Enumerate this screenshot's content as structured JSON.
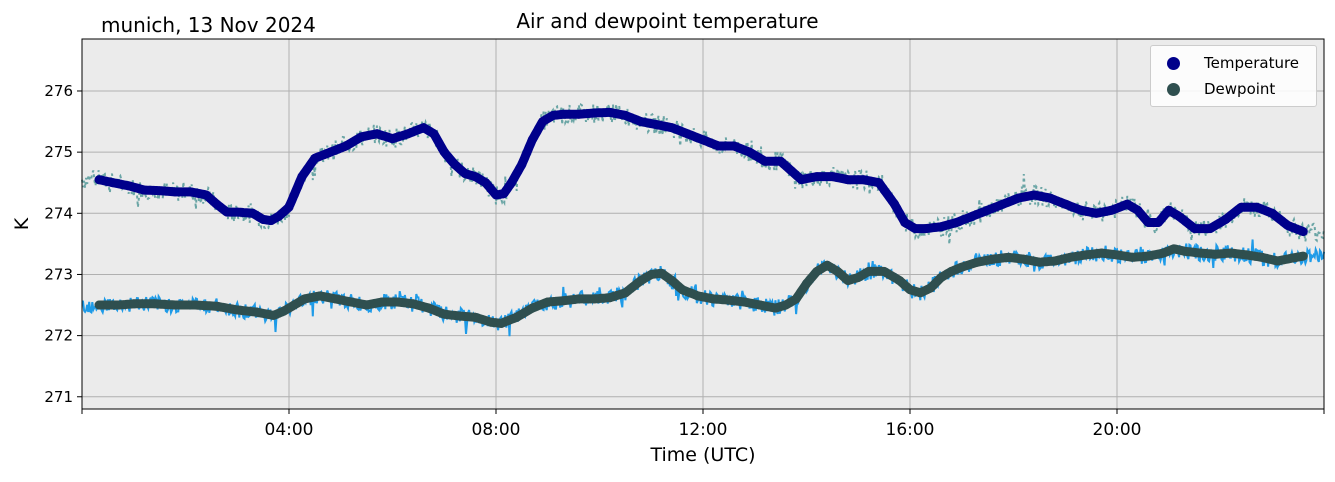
{
  "header": {
    "station_date": "munich, 13 Nov 2024",
    "title": "Air and dewpoint temperature"
  },
  "chart_data": {
    "type": "line",
    "title": "Air and dewpoint temperature",
    "xlabel": "Time (UTC)",
    "ylabel": "K",
    "xlim_hours": [
      0,
      24
    ],
    "ylim": [
      270.8,
      276.85
    ],
    "x_ticks": [
      0,
      4,
      8,
      12,
      16,
      20,
      24
    ],
    "x_tick_labels": [
      "",
      "04:00",
      "08:00",
      "12:00",
      "16:00",
      "20:00",
      ""
    ],
    "y_ticks": [
      271,
      272,
      273,
      274,
      275,
      276
    ],
    "grid": true,
    "legend_position": "top-right",
    "colors": {
      "temperature_smoothed": "#00008b",
      "dewpoint_smoothed": "#2f4f4f",
      "temperature_raw": "#6aa5a5",
      "dewpoint_raw": "#1e9be8",
      "plot_background": "#ebebeb",
      "grid": "#b0b0b0"
    },
    "series": [
      {
        "name": "Temperature",
        "role": "smoothed",
        "color": "#00008b",
        "x": [
          0.33,
          0.6,
          0.9,
          1.2,
          1.5,
          1.8,
          2.1,
          2.4,
          2.6,
          2.8,
          3.0,
          3.3,
          3.5,
          3.65,
          3.8,
          4.0,
          4.1,
          4.25,
          4.5,
          4.8,
          5.1,
          5.4,
          5.7,
          6.0,
          6.3,
          6.6,
          6.8,
          7.0,
          7.2,
          7.4,
          7.6,
          7.8,
          8.0,
          8.15,
          8.3,
          8.5,
          8.7,
          8.9,
          9.1,
          9.3,
          9.6,
          9.9,
          10.2,
          10.5,
          10.8,
          11.1,
          11.4,
          11.7,
          12.0,
          12.3,
          12.6,
          12.9,
          13.2,
          13.5,
          13.7,
          13.9,
          14.2,
          14.5,
          14.8,
          15.1,
          15.4,
          15.7,
          15.9,
          16.1,
          16.3,
          16.6,
          16.9,
          17.2,
          17.5,
          17.8,
          18.1,
          18.4,
          18.7,
          19.0,
          19.3,
          19.6,
          19.9,
          20.2,
          20.4,
          20.6,
          20.8,
          21.0,
          21.2,
          21.5,
          21.8,
          22.1,
          22.4,
          22.7,
          23.0,
          23.3,
          23.6
        ],
        "values": [
          274.55,
          274.5,
          274.45,
          274.38,
          274.37,
          274.35,
          274.35,
          274.3,
          274.15,
          274.02,
          274.02,
          274.0,
          273.9,
          273.88,
          273.95,
          274.1,
          274.3,
          274.6,
          274.9,
          275.0,
          275.1,
          275.25,
          275.3,
          275.22,
          275.3,
          275.4,
          275.3,
          275.0,
          274.8,
          274.65,
          274.6,
          274.5,
          274.3,
          274.32,
          274.5,
          274.8,
          275.2,
          275.5,
          275.6,
          275.62,
          275.62,
          275.64,
          275.65,
          275.6,
          275.5,
          275.45,
          275.4,
          275.3,
          275.2,
          275.1,
          275.1,
          275.0,
          274.85,
          274.85,
          274.7,
          274.55,
          274.6,
          274.6,
          274.55,
          274.55,
          274.5,
          274.15,
          273.85,
          273.75,
          273.75,
          273.78,
          273.85,
          273.95,
          274.05,
          274.15,
          274.25,
          274.3,
          274.25,
          274.15,
          274.05,
          274.0,
          274.05,
          274.15,
          274.05,
          273.85,
          273.85,
          274.05,
          273.95,
          273.75,
          273.75,
          273.9,
          274.1,
          274.1,
          274.0,
          273.8,
          273.7
        ]
      },
      {
        "name": "Dewpoint",
        "role": "smoothed",
        "color": "#2f4f4f",
        "x": [
          0.33,
          0.7,
          1.0,
          1.4,
          1.8,
          2.2,
          2.6,
          3.0,
          3.4,
          3.7,
          3.9,
          4.1,
          4.3,
          4.6,
          4.9,
          5.2,
          5.5,
          5.8,
          6.1,
          6.4,
          6.7,
          7.0,
          7.3,
          7.6,
          7.9,
          8.1,
          8.4,
          8.7,
          9.0,
          9.3,
          9.6,
          9.9,
          10.2,
          10.5,
          10.8,
          11.0,
          11.2,
          11.4,
          11.6,
          11.9,
          12.2,
          12.5,
          12.8,
          13.1,
          13.4,
          13.6,
          13.8,
          14.0,
          14.2,
          14.4,
          14.6,
          14.8,
          15.0,
          15.2,
          15.5,
          15.8,
          16.0,
          16.2,
          16.4,
          16.6,
          16.8,
          17.0,
          17.3,
          17.6,
          17.9,
          18.2,
          18.5,
          18.8,
          19.1,
          19.4,
          19.7,
          20.0,
          20.3,
          20.6,
          20.9,
          21.1,
          21.3,
          21.6,
          21.9,
          22.2,
          22.5,
          22.8,
          23.1,
          23.4,
          23.6
        ],
        "values": [
          272.5,
          272.5,
          272.52,
          272.52,
          272.5,
          272.5,
          272.48,
          272.42,
          272.38,
          272.33,
          272.4,
          272.5,
          272.6,
          272.65,
          272.6,
          272.55,
          272.5,
          272.55,
          272.55,
          272.52,
          272.45,
          272.35,
          272.32,
          272.3,
          272.22,
          272.2,
          272.3,
          272.45,
          272.55,
          272.57,
          272.6,
          272.6,
          272.62,
          272.7,
          272.9,
          273.0,
          273.02,
          272.9,
          272.75,
          272.65,
          272.6,
          272.58,
          272.55,
          272.5,
          272.45,
          272.5,
          272.6,
          272.85,
          273.05,
          273.15,
          273.05,
          272.9,
          272.95,
          273.05,
          273.05,
          272.9,
          272.75,
          272.7,
          272.78,
          272.95,
          273.05,
          273.12,
          273.2,
          273.25,
          273.28,
          273.25,
          273.2,
          273.22,
          273.28,
          273.32,
          273.35,
          273.32,
          273.28,
          273.3,
          273.35,
          273.42,
          273.38,
          273.35,
          273.33,
          273.35,
          273.32,
          273.28,
          273.22,
          273.27,
          273.3
        ]
      }
    ]
  },
  "legend": {
    "temperature": "Temperature",
    "dewpoint": "Dewpoint"
  }
}
